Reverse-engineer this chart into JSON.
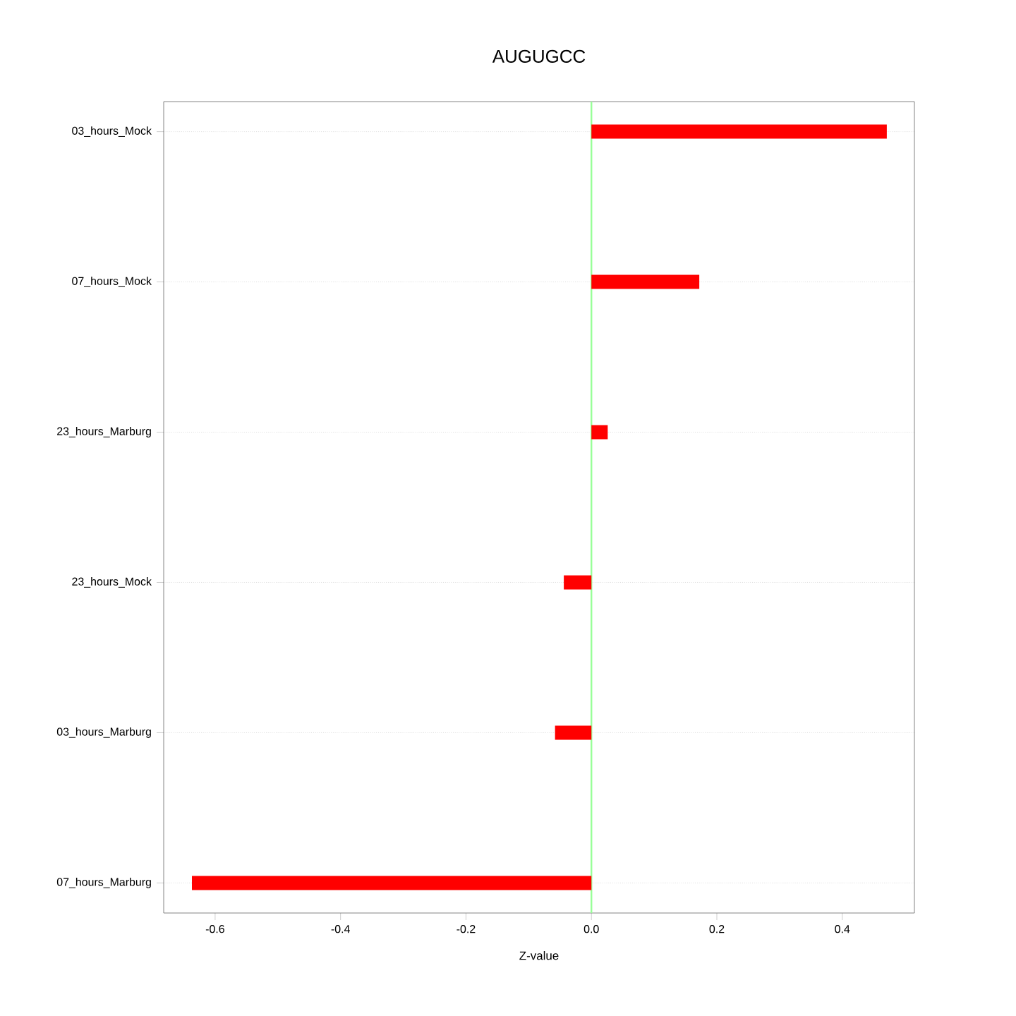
{
  "chart_data": {
    "type": "bar",
    "orientation": "horizontal",
    "title": "AUGUGCC",
    "xlabel": "Z-value",
    "categories": [
      "03_hours_Mock",
      "07_hours_Mock",
      "23_hours_Marburg",
      "23_hours_Mock",
      "03_hours_Marburg",
      "07_hours_Marburg"
    ],
    "values": [
      0.471,
      0.172,
      0.026,
      -0.044,
      -0.058,
      -0.637
    ],
    "color": "#ff0000",
    "xlim": [
      -0.682,
      0.515
    ],
    "xticks": [
      -0.6,
      -0.4,
      -0.2,
      {
        "value": 0,
        "label": "0.0"
      },
      0.2,
      0.4
    ],
    "grid": "y",
    "ref_lines": [
      {
        "axis": "x",
        "value": 0,
        "color": "#99ff99"
      }
    ]
  }
}
